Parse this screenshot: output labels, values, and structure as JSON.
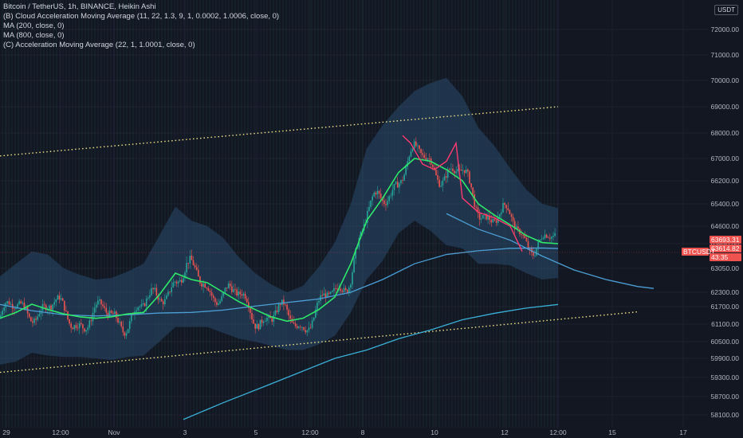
{
  "legend": {
    "title": "Bitcoin / TetherUS, 1h, BINANCE, Heikin Ashi",
    "line1": "(B) Cloud Acceleration Moving Average (11, 22, 1.3, 9, 1, 0.0002, 1.0006, close, 0)",
    "line2": "MA (200, close, 0)",
    "line3": "MA (800, close, 0)",
    "line4": "(C) Acceleration Moving Average (22, 1, 1.0001, close, 0)"
  },
  "currency": "USDT",
  "colors": {
    "background": "#131722",
    "bull": "#26a69a",
    "bear": "#ef5350",
    "cloud": "#2a4a6e",
    "ma200": "#4b9fd5",
    "ma800": "#3ab0d8",
    "accel": "#2ee86a",
    "accel_bear": "#ff3b6f",
    "channel": "#f5e58a",
    "price_label": "#ef5350"
  },
  "chart_data": {
    "type": "line",
    "chart_style": "heikin-ashi candles with moving averages",
    "y_ticks": [
      "72000.00",
      "71000.00",
      "70000.00",
      "69000.00",
      "68000.00",
      "67000.00",
      "66200.00",
      "65400.00",
      "64600.00",
      "63850.00",
      "63050.00",
      "62300.00",
      "61700.00",
      "61100.00",
      "60500.00",
      "59900.00",
      "59300.00",
      "58700.00",
      "58100.00"
    ],
    "x_ticks": [
      "29",
      "12:00",
      "Nov",
      "3",
      "5",
      "12:00",
      "8",
      "10",
      "12",
      "12:00",
      "15",
      "17"
    ],
    "ylim": [
      57900,
      72600
    ],
    "price_labels": [
      {
        "text": "63693.31",
        "kind": "ma"
      },
      {
        "text": "63614.82",
        "kind": "last"
      },
      {
        "text": "BTCUSDT",
        "kind": "symbol"
      },
      {
        "text": "43:35",
        "kind": "countdown"
      }
    ],
    "series": [
      {
        "name": "MA (200, close, 0)",
        "color": "#4b9fd5",
        "x": [
          0,
          40,
          80,
          120,
          160,
          200,
          240,
          280,
          320,
          360,
          400,
          440,
          480,
          520,
          560,
          600,
          640,
          680,
          700
        ],
        "y": [
          61790,
          61560,
          61420,
          61380,
          61420,
          61480,
          61500,
          61580,
          61720,
          61870,
          62020,
          62300,
          62700,
          63200,
          63500,
          63620,
          63700,
          63710,
          63693
        ]
      },
      {
        "name": "MA (200, close, 0) projection",
        "color": "#4b9fd5",
        "x": [
          560,
          600,
          640,
          680,
          720,
          760,
          800,
          820
        ],
        "y": [
          65050,
          64470,
          64000,
          63450,
          63000,
          62700,
          62480,
          62420
        ]
      },
      {
        "name": "MA (800, close, 0)",
        "color": "#3ab0d8",
        "x": [
          230,
          280,
          330,
          380,
          420,
          460,
          500,
          540,
          580,
          620,
          660,
          700
        ],
        "y": [
          57950,
          58500,
          59000,
          59500,
          59900,
          60200,
          60600,
          60900,
          61250,
          61470,
          61650,
          61790
        ]
      },
      {
        "name": "(C) Acceleration Moving Average (22, 1, 1.0001, close, 0)",
        "color": "#2ee86a",
        "x": [
          0,
          20,
          40,
          60,
          80,
          100,
          120,
          140,
          160,
          180,
          200,
          220,
          240,
          260,
          280,
          300,
          320,
          340,
          360,
          380,
          400,
          420,
          440,
          460,
          480,
          500,
          520,
          540,
          560,
          580,
          600,
          620,
          640,
          660,
          680,
          700
        ],
        "y": [
          61300,
          61500,
          61800,
          61600,
          61450,
          61350,
          61300,
          61350,
          61450,
          61500,
          62200,
          62900,
          62700,
          62600,
          62300,
          61900,
          61600,
          61350,
          61200,
          61300,
          61600,
          62100,
          63200,
          64800,
          65600,
          66500,
          67000,
          66900,
          66600,
          66200,
          65400,
          65000,
          64650,
          64200,
          63900,
          63850
        ]
      }
    ],
    "channel_lines": [
      {
        "name": "upper",
        "x": [
          0,
          700
        ],
        "y": [
          67100,
          69000
        ]
      },
      {
        "name": "lower",
        "x": [
          0,
          800
        ],
        "y": [
          59460,
          61520
        ]
      }
    ]
  }
}
